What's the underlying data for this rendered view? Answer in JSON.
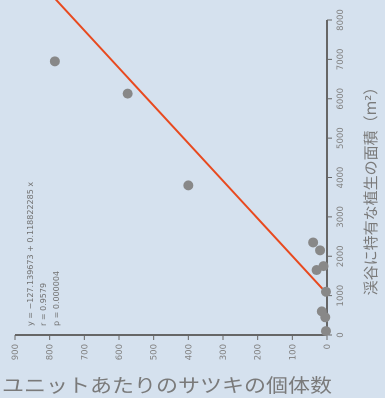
{
  "chart_data": {
    "type": "scatter",
    "xlabel": "ユニットあたりのサツキの個体数",
    "ylabel": "渓谷に特有な植生の面積（m²）",
    "xlim": [
      0,
      900
    ],
    "ylim": [
      0,
      8000
    ],
    "x_ticks": [
      "900",
      "800",
      "700",
      "600",
      "500",
      "400",
      "300",
      "200",
      "100",
      "0"
    ],
    "y_ticks": [
      "0",
      "1000",
      "2000",
      "3000",
      "4000",
      "5000",
      "6000",
      "7000",
      "8000"
    ],
    "points": [
      {
        "x": 785,
        "y": 6950
      },
      {
        "x": 575,
        "y": 6130
      },
      {
        "x": 400,
        "y": 3800
      },
      {
        "x": 40,
        "y": 2350
      },
      {
        "x": 20,
        "y": 2150
      },
      {
        "x": 10,
        "y": 1750
      },
      {
        "x": 30,
        "y": 1650
      },
      {
        "x": 3,
        "y": 1100
      },
      {
        "x": 15,
        "y": 600
      },
      {
        "x": 5,
        "y": 450
      },
      {
        "x": 3,
        "y": 100
      }
    ],
    "regression": {
      "intercept": -127.139673,
      "slope": 0.118822285
    },
    "annotations": [
      "y = −127.139673 + 0.118822285 x",
      "r = 0.9579",
      "p = 0.000004"
    ],
    "colors": {
      "points": "#888888",
      "line": "#e8491e",
      "axis": "#666666",
      "background": "#d5e1ee"
    }
  }
}
